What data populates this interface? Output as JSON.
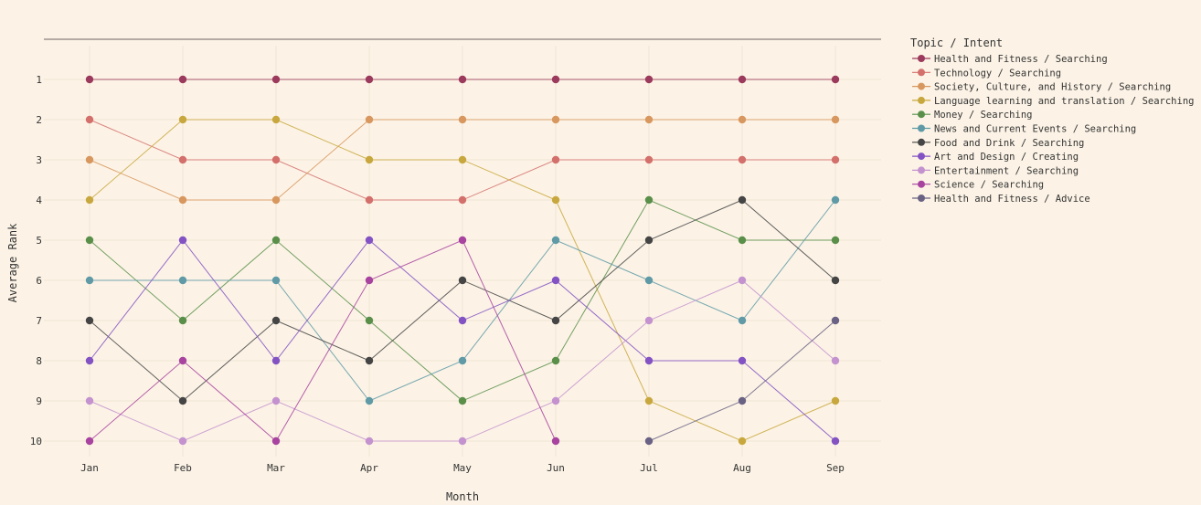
{
  "chart_data": {
    "type": "line",
    "title": "",
    "xlabel": "Month",
    "ylabel": "Average Rank",
    "ylim": [
      10,
      1
    ],
    "y_inverted": true,
    "y_ticks": [
      1,
      2,
      3,
      4,
      5,
      6,
      7,
      8,
      9,
      10
    ],
    "grid": true,
    "legend_title": "Topic / Intent",
    "legend_position": "right",
    "categories": [
      "Jan",
      "Feb",
      "Mar",
      "Apr",
      "May",
      "Jun",
      "Jul",
      "Aug",
      "Sep"
    ],
    "series": [
      {
        "name": "Health and Fitness / Searching",
        "color": "#9b3a5c",
        "values": [
          1,
          1,
          1,
          1,
          1,
          1,
          1,
          1,
          1
        ]
      },
      {
        "name": "Technology / Searching",
        "color": "#d4706c",
        "values": [
          2,
          3,
          3,
          4,
          4,
          3,
          3,
          3,
          3
        ]
      },
      {
        "name": "Society, Culture, and History / Searching",
        "color": "#d8975e",
        "values": [
          3,
          4,
          4,
          2,
          2,
          2,
          2,
          2,
          2
        ]
      },
      {
        "name": "Language learning and translation / Searching",
        "color": "#c8a83e",
        "values": [
          4,
          2,
          2,
          3,
          3,
          4,
          9,
          10,
          9
        ]
      },
      {
        "name": "Money / Searching",
        "color": "#5a8f4a",
        "values": [
          5,
          7,
          5,
          7,
          9,
          8,
          4,
          5,
          5
        ]
      },
      {
        "name": "News and Current Events / Searching",
        "color": "#5f9aa6",
        "values": [
          6,
          6,
          6,
          9,
          8,
          5,
          6,
          7,
          4
        ]
      },
      {
        "name": "Food and Drink / Searching",
        "color": "#454545",
        "values": [
          7,
          9,
          7,
          8,
          6,
          7,
          5,
          4,
          6
        ]
      },
      {
        "name": "Art and Design / Creating",
        "color": "#8353c4",
        "values": [
          8,
          5,
          8,
          5,
          7,
          6,
          8,
          8,
          10
        ]
      },
      {
        "name": "Entertainment / Searching",
        "color": "#c493cf",
        "values": [
          9,
          10,
          9,
          10,
          10,
          9,
          7,
          6,
          8
        ]
      },
      {
        "name": "Science / Searching",
        "color": "#a8439f",
        "values": [
          10,
          8,
          10,
          6,
          5,
          10,
          null,
          null,
          null
        ]
      },
      {
        "name": "Health and Fitness / Advice",
        "color": "#6a6284",
        "values": [
          null,
          null,
          null,
          null,
          null,
          null,
          10,
          9,
          7
        ]
      }
    ]
  }
}
